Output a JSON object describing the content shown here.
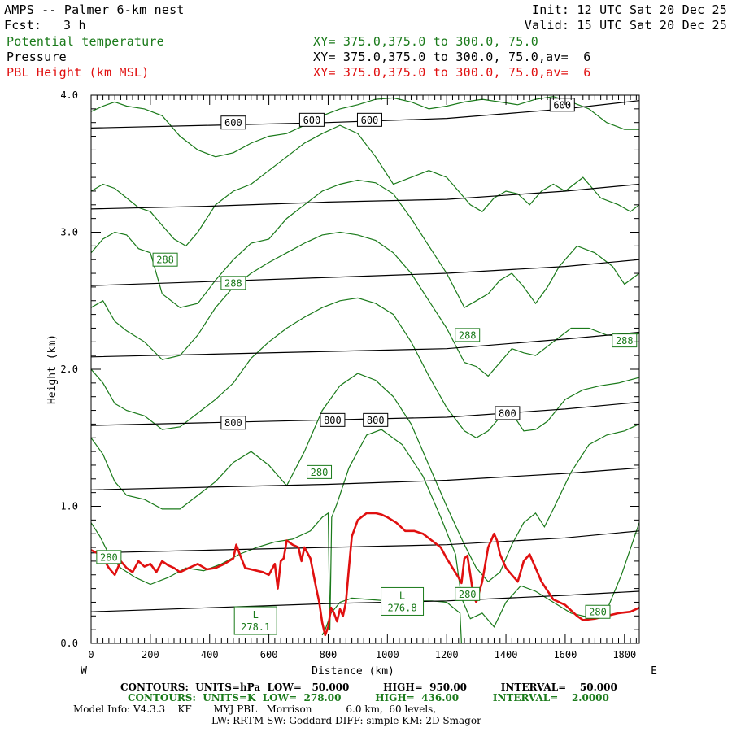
{
  "header": {
    "title": "AMPS -- Palmer 6-km nest",
    "fcst_label": "Fcst:",
    "fcst_value": "3 h",
    "init": "Init: 12 UTC Sat 20 Dec 25",
    "valid": "Valid: 15 UTC Sat 20 Dec 25",
    "fields": [
      {
        "name": "Potential temperature",
        "xy": "XY= 375.0,375.0 to 300.0, 75.0",
        "color": "#1a7a1a"
      },
      {
        "name": "Pressure",
        "xy": "XY= 375.0,375.0 to 300.0, 75.0,av=  6",
        "color": "#000000"
      },
      {
        "name": "PBL Height (km MSL)",
        "xy": "XY= 375.0,375.0 to 300.0, 75.0,av=  6",
        "color": "#e01010"
      }
    ]
  },
  "footer": {
    "line1": "CONTOURS:  UNITS=hPa  LOW=   50.000          HIGH=  950.00          INTERVAL=    50.000",
    "line2": "CONTOURS:  UNITS=K  LOW=  278.00          HIGH=  436.00          INTERVAL=    2.0000",
    "line3": "Model Info: V4.3.3    KF       MYJ PBL   Morrison           6.0 km,  60 levels,",
    "line4": "LW: RRTM SW: Goddard DIFF: simple KM: 2D Smagor"
  },
  "colors": {
    "theta": "#1a7a1a",
    "pressure": "#000000",
    "pbl": "#e01010"
  },
  "chart_data": {
    "type": "line",
    "xlabel": "Distance (km)",
    "ylabel": "Height (km)",
    "xlim": [
      0,
      1850
    ],
    "ylim": [
      0,
      4
    ],
    "x_ticks": [
      0,
      200,
      400,
      600,
      800,
      1000,
      1200,
      1400,
      1600,
      1800
    ],
    "y_ticks": [
      0.0,
      1.0,
      2.0,
      3.0,
      4.0
    ],
    "y_tick_labels": [
      "0.0",
      "1.0",
      "2.0",
      "3.0",
      "4.0"
    ],
    "west_label": "W",
    "east_label": "E",
    "pressure_series": [
      {
        "name": "pressure-950",
        "x": [
          0,
          400,
          800,
          1200,
          1600,
          1850
        ],
        "y": [
          0.23,
          0.26,
          0.29,
          0.31,
          0.35,
          0.38
        ]
      },
      {
        "name": "pressure-900",
        "x": [
          0,
          400,
          800,
          1200,
          1600,
          1850
        ],
        "y": [
          0.66,
          0.68,
          0.7,
          0.72,
          0.77,
          0.82
        ]
      },
      {
        "name": "pressure-850",
        "x": [
          0,
          400,
          800,
          1200,
          1600,
          1850
        ],
        "y": [
          1.12,
          1.14,
          1.16,
          1.19,
          1.24,
          1.28
        ]
      },
      {
        "name": "pressure-800",
        "x": [
          0,
          400,
          800,
          1200,
          1600,
          1850
        ],
        "y": [
          1.59,
          1.61,
          1.63,
          1.65,
          1.71,
          1.76
        ]
      },
      {
        "name": "pressure-750",
        "x": [
          0,
          400,
          800,
          1200,
          1600,
          1850
        ],
        "y": [
          2.09,
          2.11,
          2.13,
          2.15,
          2.22,
          2.27
        ]
      },
      {
        "name": "pressure-700",
        "x": [
          0,
          400,
          800,
          1200,
          1600,
          1850
        ],
        "y": [
          2.61,
          2.64,
          2.67,
          2.7,
          2.75,
          2.8
        ]
      },
      {
        "name": "pressure-650",
        "x": [
          0,
          400,
          800,
          1200,
          1600,
          1850
        ],
        "y": [
          3.17,
          3.19,
          3.22,
          3.24,
          3.3,
          3.35
        ]
      },
      {
        "name": "pressure-600",
        "x": [
          0,
          400,
          800,
          1200,
          1600,
          1850
        ],
        "y": [
          3.76,
          3.78,
          3.8,
          3.83,
          3.9,
          3.96
        ]
      }
    ],
    "theta_series": [
      {
        "name": "theta-278",
        "x": [
          780,
          790,
          800,
          810,
          840,
          880,
          940,
          1000,
          1080,
          1150,
          1200,
          1245,
          1250
        ],
        "y": [
          0.06,
          0.1,
          0.16,
          0.22,
          0.3,
          0.33,
          0.32,
          0.31,
          0.31,
          0.31,
          0.3,
          0.22,
          0.0
        ]
      },
      {
        "name": "theta-280",
        "x": [
          0,
          30,
          60,
          100,
          150,
          200,
          260,
          320,
          380,
          440,
          500,
          560,
          620,
          680,
          740,
          780,
          800,
          806,
          812,
          830,
          870,
          930,
          980,
          1050,
          1120,
          1180,
          1230,
          1250,
          1280,
          1320,
          1360,
          1400,
          1450,
          1500,
          1560,
          1620,
          1680,
          1740,
          1790,
          1850
        ],
        "y": [
          0.88,
          0.78,
          0.65,
          0.55,
          0.48,
          0.43,
          0.48,
          0.55,
          0.53,
          0.58,
          0.65,
          0.7,
          0.74,
          0.76,
          0.82,
          0.92,
          0.95,
          0.1,
          0.92,
          1.02,
          1.28,
          1.52,
          1.56,
          1.45,
          1.22,
          0.92,
          0.65,
          0.33,
          0.18,
          0.22,
          0.12,
          0.3,
          0.42,
          0.38,
          0.3,
          0.22,
          0.19,
          0.24,
          0.5,
          0.88
        ]
      },
      {
        "name": "theta-282",
        "x": [
          0,
          40,
          80,
          120,
          180,
          240,
          300,
          360,
          420,
          480,
          540,
          600,
          660,
          720,
          780,
          840,
          900,
          960,
          1020,
          1080,
          1140,
          1200,
          1260,
          1300,
          1340,
          1380,
          1420,
          1460,
          1500,
          1530,
          1560,
          1620,
          1680,
          1740,
          1800,
          1850
        ],
        "y": [
          1.5,
          1.38,
          1.18,
          1.08,
          1.05,
          0.98,
          0.98,
          1.08,
          1.18,
          1.32,
          1.4,
          1.3,
          1.15,
          1.4,
          1.7,
          1.88,
          1.97,
          1.92,
          1.8,
          1.6,
          1.3,
          1.0,
          0.72,
          0.55,
          0.45,
          0.52,
          0.72,
          0.88,
          0.95,
          0.85,
          0.98,
          1.25,
          1.45,
          1.52,
          1.55,
          1.6
        ]
      },
      {
        "name": "theta-284",
        "x": [
          0,
          40,
          80,
          120,
          180,
          240,
          300,
          360,
          420,
          480,
          540,
          600,
          660,
          720,
          780,
          840,
          900,
          960,
          1020,
          1080,
          1140,
          1200,
          1260,
          1300,
          1340,
          1380,
          1420,
          1460,
          1500,
          1540,
          1600,
          1660,
          1720,
          1780,
          1850
        ],
        "y": [
          2.0,
          1.9,
          1.75,
          1.7,
          1.66,
          1.56,
          1.58,
          1.68,
          1.78,
          1.9,
          2.08,
          2.2,
          2.3,
          2.38,
          2.45,
          2.5,
          2.52,
          2.48,
          2.4,
          2.2,
          1.95,
          1.72,
          1.55,
          1.5,
          1.55,
          1.65,
          1.68,
          1.55,
          1.56,
          1.62,
          1.78,
          1.85,
          1.88,
          1.9,
          1.94
        ]
      },
      {
        "name": "theta-286",
        "x": [
          0,
          40,
          80,
          120,
          180,
          240,
          300,
          360,
          420,
          480,
          540,
          600,
          660,
          720,
          780,
          840,
          900,
          960,
          1020,
          1080,
          1140,
          1200,
          1260,
          1300,
          1340,
          1380,
          1420,
          1460,
          1500,
          1560,
          1620,
          1680,
          1740,
          1800,
          1850
        ],
        "y": [
          2.45,
          2.5,
          2.35,
          2.28,
          2.2,
          2.07,
          2.1,
          2.25,
          2.45,
          2.6,
          2.7,
          2.78,
          2.85,
          2.92,
          2.98,
          3.0,
          2.98,
          2.94,
          2.85,
          2.7,
          2.5,
          2.3,
          2.05,
          2.02,
          1.95,
          2.05,
          2.15,
          2.12,
          2.1,
          2.2,
          2.3,
          2.3,
          2.25,
          2.24,
          2.26
        ]
      },
      {
        "name": "theta-288",
        "x": [
          0,
          40,
          80,
          120,
          160,
          200,
          240,
          300,
          360,
          420,
          480,
          540,
          600,
          660,
          720,
          780,
          840,
          900,
          960,
          1020,
          1080,
          1140,
          1200,
          1260,
          1300,
          1340,
          1380,
          1420,
          1460,
          1500,
          1540,
          1580,
          1640,
          1700,
          1760,
          1800,
          1850
        ],
        "y": [
          2.85,
          2.95,
          3.0,
          2.98,
          2.88,
          2.85,
          2.55,
          2.45,
          2.48,
          2.65,
          2.8,
          2.92,
          2.95,
          3.1,
          3.2,
          3.3,
          3.35,
          3.38,
          3.36,
          3.28,
          3.1,
          2.9,
          2.7,
          2.45,
          2.5,
          2.55,
          2.65,
          2.7,
          2.6,
          2.48,
          2.6,
          2.75,
          2.9,
          2.85,
          2.75,
          2.62,
          2.7
        ]
      },
      {
        "name": "theta-290",
        "x": [
          0,
          40,
          80,
          120,
          160,
          200,
          240,
          280,
          320,
          360,
          420,
          480,
          540,
          600,
          660,
          720,
          780,
          840,
          900,
          960,
          1020,
          1080,
          1140,
          1200,
          1240,
          1280,
          1320,
          1360,
          1400,
          1440,
          1480,
          1520,
          1560,
          1600,
          1660,
          1720,
          1780,
          1820,
          1850
        ],
        "y": [
          3.3,
          3.35,
          3.32,
          3.25,
          3.18,
          3.15,
          3.05,
          2.95,
          2.9,
          3.0,
          3.2,
          3.3,
          3.35,
          3.45,
          3.55,
          3.65,
          3.72,
          3.78,
          3.72,
          3.55,
          3.35,
          3.4,
          3.45,
          3.4,
          3.3,
          3.2,
          3.15,
          3.25,
          3.3,
          3.28,
          3.2,
          3.3,
          3.35,
          3.3,
          3.4,
          3.25,
          3.2,
          3.15,
          3.2
        ]
      },
      {
        "name": "theta-292",
        "x": [
          0,
          40,
          80,
          120,
          180,
          240,
          300,
          360,
          420,
          480,
          540,
          600,
          660,
          720,
          780,
          840,
          900,
          960,
          1020,
          1080,
          1140,
          1200,
          1260,
          1320,
          1380,
          1440,
          1500,
          1560,
          1620,
          1680,
          1740,
          1800,
          1850
        ],
        "y": [
          3.88,
          3.92,
          3.95,
          3.92,
          3.9,
          3.85,
          3.7,
          3.6,
          3.55,
          3.58,
          3.65,
          3.7,
          3.72,
          3.78,
          3.85,
          3.9,
          3.93,
          3.97,
          3.98,
          3.95,
          3.9,
          3.92,
          3.95,
          3.97,
          3.95,
          3.93,
          3.97,
          3.99,
          3.95,
          3.9,
          3.8,
          3.75,
          3.75
        ]
      }
    ],
    "pbl": {
      "x": [
        0,
        20,
        40,
        60,
        80,
        100,
        120,
        140,
        160,
        180,
        200,
        220,
        240,
        260,
        280,
        300,
        330,
        360,
        390,
        420,
        450,
        480,
        490,
        500,
        520,
        540,
        560,
        580,
        600,
        620,
        630,
        640,
        650,
        660,
        680,
        700,
        710,
        720,
        740,
        760,
        770,
        780,
        790,
        800,
        810,
        820,
        830,
        840,
        850,
        860,
        870,
        880,
        900,
        930,
        960,
        980,
        1000,
        1030,
        1060,
        1090,
        1120,
        1150,
        1180,
        1200,
        1220,
        1240,
        1250,
        1260,
        1270,
        1280,
        1290,
        1300,
        1320,
        1340,
        1360,
        1370,
        1380,
        1400,
        1420,
        1440,
        1460,
        1480,
        1500,
        1520,
        1560,
        1600,
        1640,
        1660,
        1700,
        1740,
        1780,
        1820,
        1850
      ],
      "y": [
        0.68,
        0.66,
        0.62,
        0.55,
        0.5,
        0.6,
        0.55,
        0.52,
        0.6,
        0.56,
        0.58,
        0.52,
        0.6,
        0.57,
        0.55,
        0.52,
        0.55,
        0.58,
        0.54,
        0.55,
        0.58,
        0.62,
        0.72,
        0.66,
        0.55,
        0.54,
        0.53,
        0.52,
        0.5,
        0.58,
        0.4,
        0.6,
        0.62,
        0.75,
        0.72,
        0.7,
        0.6,
        0.7,
        0.62,
        0.4,
        0.3,
        0.15,
        0.06,
        0.12,
        0.26,
        0.22,
        0.16,
        0.25,
        0.2,
        0.3,
        0.55,
        0.78,
        0.9,
        0.95,
        0.95,
        0.94,
        0.92,
        0.88,
        0.82,
        0.82,
        0.8,
        0.75,
        0.7,
        0.62,
        0.55,
        0.48,
        0.44,
        0.62,
        0.64,
        0.5,
        0.35,
        0.3,
        0.45,
        0.7,
        0.8,
        0.75,
        0.65,
        0.55,
        0.5,
        0.45,
        0.6,
        0.65,
        0.55,
        0.45,
        0.32,
        0.28,
        0.2,
        0.17,
        0.18,
        0.2,
        0.22,
        0.23,
        0.26
      ]
    },
    "labels": [
      {
        "text": "600",
        "x": 480,
        "y": 3.8,
        "color": "#000000"
      },
      {
        "text": "600",
        "x": 745,
        "y": 3.82,
        "color": "#000000"
      },
      {
        "text": "600",
        "x": 940,
        "y": 3.82,
        "color": "#000000"
      },
      {
        "text": "600",
        "x": 1590,
        "y": 3.93,
        "color": "#000000"
      },
      {
        "text": "800",
        "x": 480,
        "y": 1.61,
        "color": "#000000"
      },
      {
        "text": "800",
        "x": 815,
        "y": 1.63,
        "color": "#000000"
      },
      {
        "text": "800",
        "x": 960,
        "y": 1.63,
        "color": "#000000"
      },
      {
        "text": "800",
        "x": 1405,
        "y": 1.68,
        "color": "#000000"
      },
      {
        "text": "288",
        "x": 250,
        "y": 2.8,
        "color": "#1a7a1a"
      },
      {
        "text": "288",
        "x": 480,
        "y": 2.63,
        "color": "#1a7a1a"
      },
      {
        "text": "288",
        "x": 1270,
        "y": 2.25,
        "color": "#1a7a1a"
      },
      {
        "text": "288",
        "x": 1800,
        "y": 2.21,
        "color": "#1a7a1a"
      },
      {
        "text": "280",
        "x": 770,
        "y": 1.25,
        "color": "#1a7a1a"
      },
      {
        "text": "280",
        "x": 60,
        "y": 0.63,
        "color": "#1a7a1a"
      },
      {
        "text": "280",
        "x": 1270,
        "y": 0.36,
        "color": "#1a7a1a"
      },
      {
        "text": "280",
        "x": 1710,
        "y": 0.23,
        "color": "#1a7a1a"
      }
    ],
    "lows": [
      {
        "letter": "L",
        "value": "278.1",
        "x": 555,
        "y": 0.16
      },
      {
        "letter": "L",
        "value": "276.8",
        "x": 1050,
        "y": 0.3
      }
    ]
  }
}
